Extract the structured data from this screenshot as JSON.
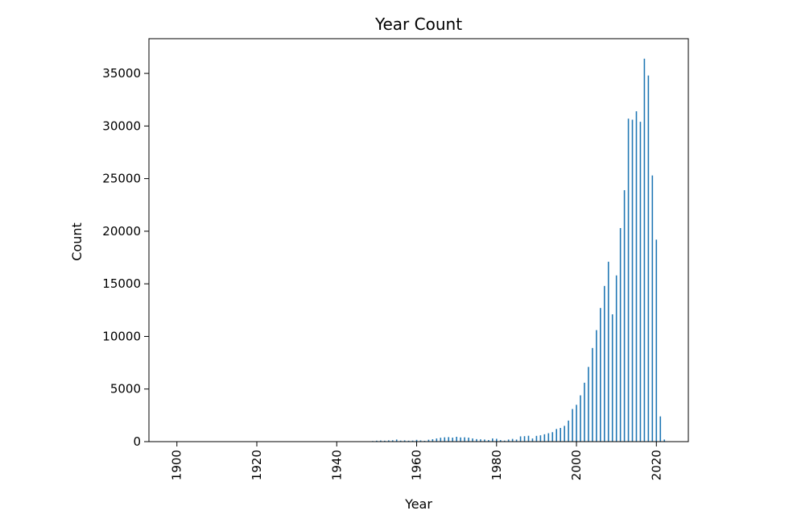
{
  "chart_data": {
    "type": "bar",
    "title": "Year Count",
    "xlabel": "Year",
    "ylabel": "Count",
    "xlim": [
      1893,
      2028
    ],
    "ylim": [
      0,
      38300
    ],
    "xticks": [
      1900,
      1920,
      1940,
      1960,
      1980,
      2000,
      2020
    ],
    "yticks": [
      0,
      5000,
      10000,
      15000,
      20000,
      25000,
      30000,
      35000
    ],
    "grid": false,
    "bar_color": "#1f77b4",
    "x": [
      1900,
      1949,
      1950,
      1951,
      1952,
      1953,
      1954,
      1955,
      1956,
      1957,
      1958,
      1959,
      1960,
      1961,
      1962,
      1963,
      1964,
      1965,
      1966,
      1967,
      1968,
      1969,
      1970,
      1971,
      1972,
      1973,
      1974,
      1975,
      1976,
      1977,
      1978,
      1979,
      1980,
      1981,
      1982,
      1983,
      1984,
      1985,
      1986,
      1987,
      1988,
      1989,
      1990,
      1991,
      1992,
      1993,
      1994,
      1995,
      1996,
      1997,
      1998,
      1999,
      2000,
      2001,
      2002,
      2003,
      2004,
      2005,
      2006,
      2007,
      2008,
      2009,
      2010,
      2011,
      2012,
      2013,
      2014,
      2015,
      2016,
      2017,
      2018,
      2019,
      2020,
      2021,
      2022
    ],
    "values": [
      20,
      60,
      90,
      110,
      90,
      120,
      130,
      200,
      100,
      120,
      90,
      100,
      170,
      120,
      80,
      180,
      230,
      300,
      370,
      410,
      430,
      380,
      460,
      400,
      410,
      380,
      300,
      240,
      220,
      200,
      150,
      300,
      270,
      150,
      100,
      200,
      260,
      200,
      500,
      520,
      560,
      300,
      550,
      600,
      700,
      800,
      900,
      1200,
      1300,
      1500,
      2000,
      3100,
      3500,
      4400,
      5600,
      7100,
      8900,
      10600,
      12700,
      14800,
      17100,
      12100,
      15800,
      20300,
      23900,
      30700,
      30600,
      31400,
      30400,
      36400,
      34800,
      25300,
      19200,
      2400,
      200
    ]
  }
}
